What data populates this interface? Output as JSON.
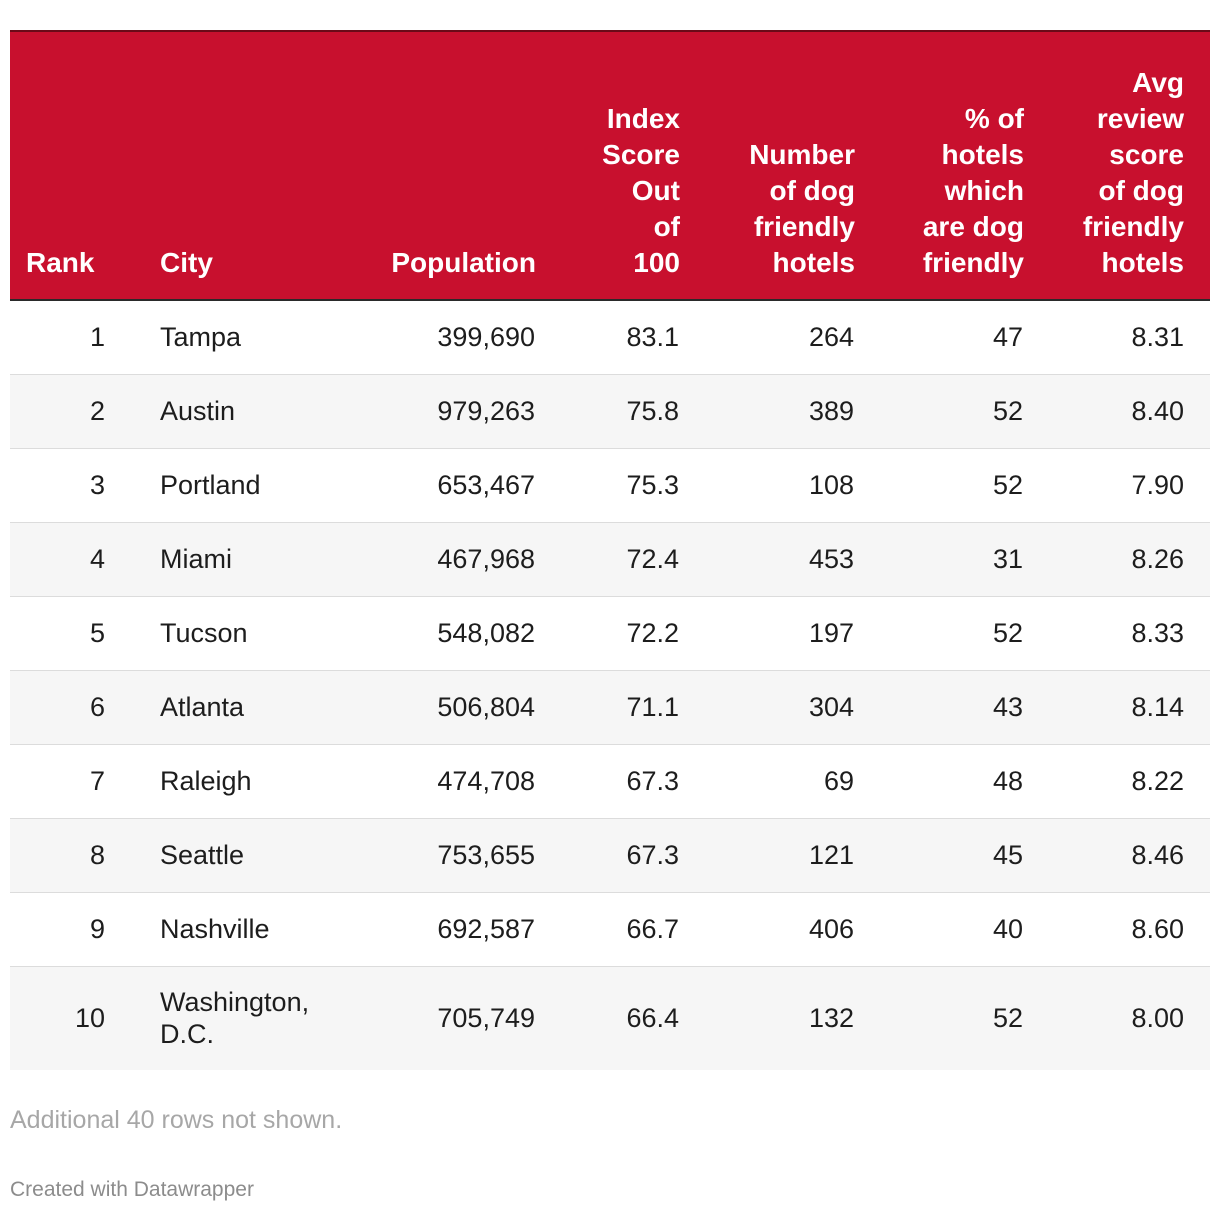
{
  "chart_data": {
    "type": "table",
    "columns": [
      "Rank",
      "City",
      "Population",
      "Index Score Out of 100",
      "Number of dog friendly hotels",
      "% of hotels which are dog friendly",
      "Avg review score of dog friendly hotels"
    ],
    "header_lines": [
      [
        "Rank"
      ],
      [
        "City"
      ],
      [
        "Population"
      ],
      [
        "Index",
        "Score",
        "Out",
        "of",
        "100"
      ],
      [
        "Number",
        "of dog",
        "friendly",
        "hotels"
      ],
      [
        "% of",
        "hotels",
        "which",
        "are dog",
        "friendly"
      ],
      [
        "Avg",
        "review",
        "score",
        "of dog",
        "friendly",
        "hotels"
      ]
    ],
    "rows": [
      [
        "1",
        "Tampa",
        "399,690",
        "83.1",
        "264",
        "47",
        "8.31"
      ],
      [
        "2",
        "Austin",
        "979,263",
        "75.8",
        "389",
        "52",
        "8.40"
      ],
      [
        "3",
        "Portland",
        "653,467",
        "75.3",
        "108",
        "52",
        "7.90"
      ],
      [
        "4",
        "Miami",
        "467,968",
        "72.4",
        "453",
        "31",
        "8.26"
      ],
      [
        "5",
        "Tucson",
        "548,082",
        "72.2",
        "197",
        "52",
        "8.33"
      ],
      [
        "6",
        "Atlanta",
        "506,804",
        "71.1",
        "304",
        "43",
        "8.14"
      ],
      [
        "7",
        "Raleigh",
        "474,708",
        "67.3",
        "69",
        "48",
        "8.22"
      ],
      [
        "8",
        "Seattle",
        "753,655",
        "67.3",
        "121",
        "45",
        "8.46"
      ],
      [
        "9",
        "Nashville",
        "692,587",
        "66.7",
        "406",
        "40",
        "8.60"
      ],
      [
        "10",
        "Washington, D.C.",
        "705,749",
        "66.4",
        "132",
        "52",
        "8.00"
      ]
    ]
  },
  "footer": {
    "note": "Additional 40 rows not shown.",
    "credit": "Created with Datawrapper"
  },
  "colors": {
    "header_bg": "#c8102e",
    "header_text": "#ffffff",
    "stripe": "#f6f6f6"
  }
}
